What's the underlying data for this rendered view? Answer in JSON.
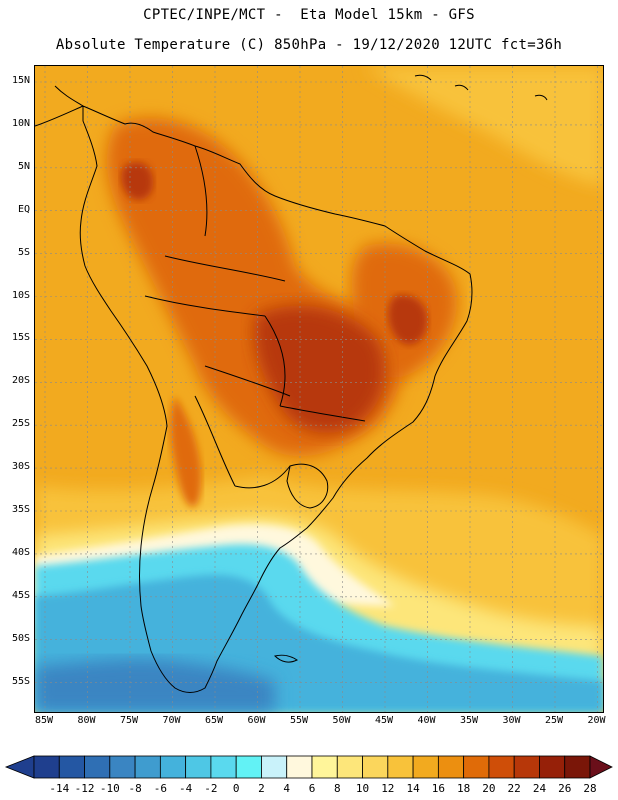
{
  "header": {
    "line1": "CPTEC/INPE/MCT -  Eta Model 15km - GFS",
    "line2": "Absolute Temperature (C) 850hPa - 19/12/2020 12UTC fct=36h"
  },
  "axes": {
    "lat_labels": [
      "15N",
      "10N",
      "5N",
      "EQ",
      "5S",
      "10S",
      "15S",
      "20S",
      "25S",
      "30S",
      "35S",
      "40S",
      "45S",
      "50S",
      "55S"
    ],
    "lat_values": [
      15,
      10,
      5,
      0,
      -5,
      -10,
      -15,
      -20,
      -25,
      -30,
      -35,
      -40,
      -45,
      -50,
      -55
    ],
    "lon_labels": [
      "85W",
      "80W",
      "75W",
      "70W",
      "65W",
      "60W",
      "55W",
      "50W",
      "45W",
      "40W",
      "35W",
      "30W",
      "25W",
      "20W"
    ],
    "lon_values": [
      -85,
      -80,
      -75,
      -70,
      -65,
      -60,
      -55,
      -50,
      -45,
      -40,
      -35,
      -30,
      -25,
      -20
    ]
  },
  "colorbar": {
    "labels": [
      "-14",
      "-12",
      "-10",
      "-8",
      "-6",
      "-4",
      "-2",
      "0",
      "2",
      "4",
      "6",
      "8",
      "10",
      "12",
      "14",
      "16",
      "18",
      "20",
      "22",
      "24",
      "26",
      "28"
    ],
    "colors": [
      "#1f3f8e",
      "#2457a3",
      "#2f6fb4",
      "#3a85c2",
      "#3f9ccf",
      "#44b2dc",
      "#4ec7e5",
      "#5ad9ee",
      "#62f2f5",
      "#c9f2fa",
      "#fff8dd",
      "#fff59a",
      "#fde67a",
      "#fbd65c",
      "#f8c23a",
      "#f2aa1f",
      "#ec8f10",
      "#e06b08",
      "#cf4e08",
      "#b73709",
      "#962008",
      "#7a1608"
    ]
  },
  "palette": {
    "hot": "#e06b08",
    "very_hot": "#b73709",
    "warm": "#f2aa1f",
    "mild": "#f8c23a",
    "cool": "#fde67a",
    "pale": "#fff8dd",
    "cold": "#5ad9ee",
    "colder": "#44b2dc",
    "coldest": "#3a85c2",
    "land_outline": "#000000"
  }
}
